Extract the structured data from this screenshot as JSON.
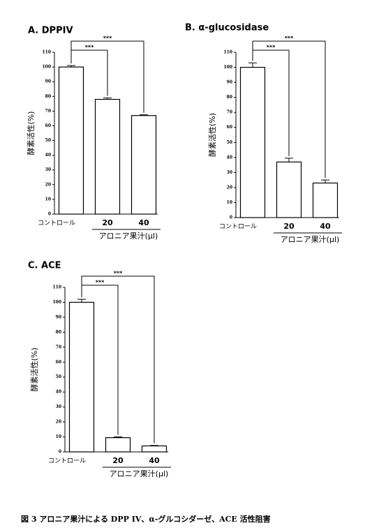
{
  "chart_data": [
    {
      "type": "bar",
      "title": "A. DPPIV",
      "y_label": "酵素活性(%)",
      "group_label": "アロニア果汁(μl)",
      "categories": [
        "コントロール",
        "20",
        "40"
      ],
      "values": [
        100,
        78,
        67
      ],
      "errors": [
        1,
        1,
        0.5
      ],
      "color": "#ffffff",
      "ylim": [
        0,
        110
      ],
      "yticks": [
        0,
        10,
        20,
        30,
        40,
        50,
        60,
        70,
        80,
        90,
        100,
        110
      ],
      "annotations": [
        {
          "text": "***",
          "from": 0,
          "to": 1
        },
        {
          "text": "***",
          "from": 0,
          "to": 2
        }
      ]
    },
    {
      "type": "bar",
      "title": "B. α-glucosidase",
      "y_label": "酵素活性(%)",
      "group_label": "アロニア果汁(μl)",
      "categories": [
        "コントロール",
        "20",
        "40"
      ],
      "values": [
        100,
        37,
        23
      ],
      "errors": [
        3,
        2.5,
        2
      ],
      "color": "#ffffff",
      "ylim": [
        0,
        110
      ],
      "yticks": [
        0,
        10,
        20,
        30,
        40,
        50,
        60,
        70,
        80,
        90,
        100,
        110
      ],
      "annotations": [
        {
          "text": "***",
          "from": 0,
          "to": 1
        },
        {
          "text": "***",
          "from": 0,
          "to": 2
        }
      ]
    },
    {
      "type": "bar",
      "title": "C. ACE",
      "y_label": "酵素活性(%)",
      "group_label": "アロニア果汁(μl)",
      "categories": [
        "コントロール",
        "20",
        "40"
      ],
      "values": [
        100,
        9.5,
        4
      ],
      "errors": [
        2,
        0.5,
        0.3
      ],
      "color": "#ffffff",
      "ylim": [
        0,
        110
      ],
      "yticks": [
        0,
        10,
        20,
        30,
        40,
        50,
        60,
        70,
        80,
        90,
        100,
        110
      ],
      "annotations": [
        {
          "text": "***",
          "from": 0,
          "to": 1
        },
        {
          "text": "***",
          "from": 0,
          "to": 2
        }
      ]
    }
  ],
  "caption": "図 3 アロニア果汁による DPP IV、α-グルコシダーゼ、ACE 活性阻害"
}
